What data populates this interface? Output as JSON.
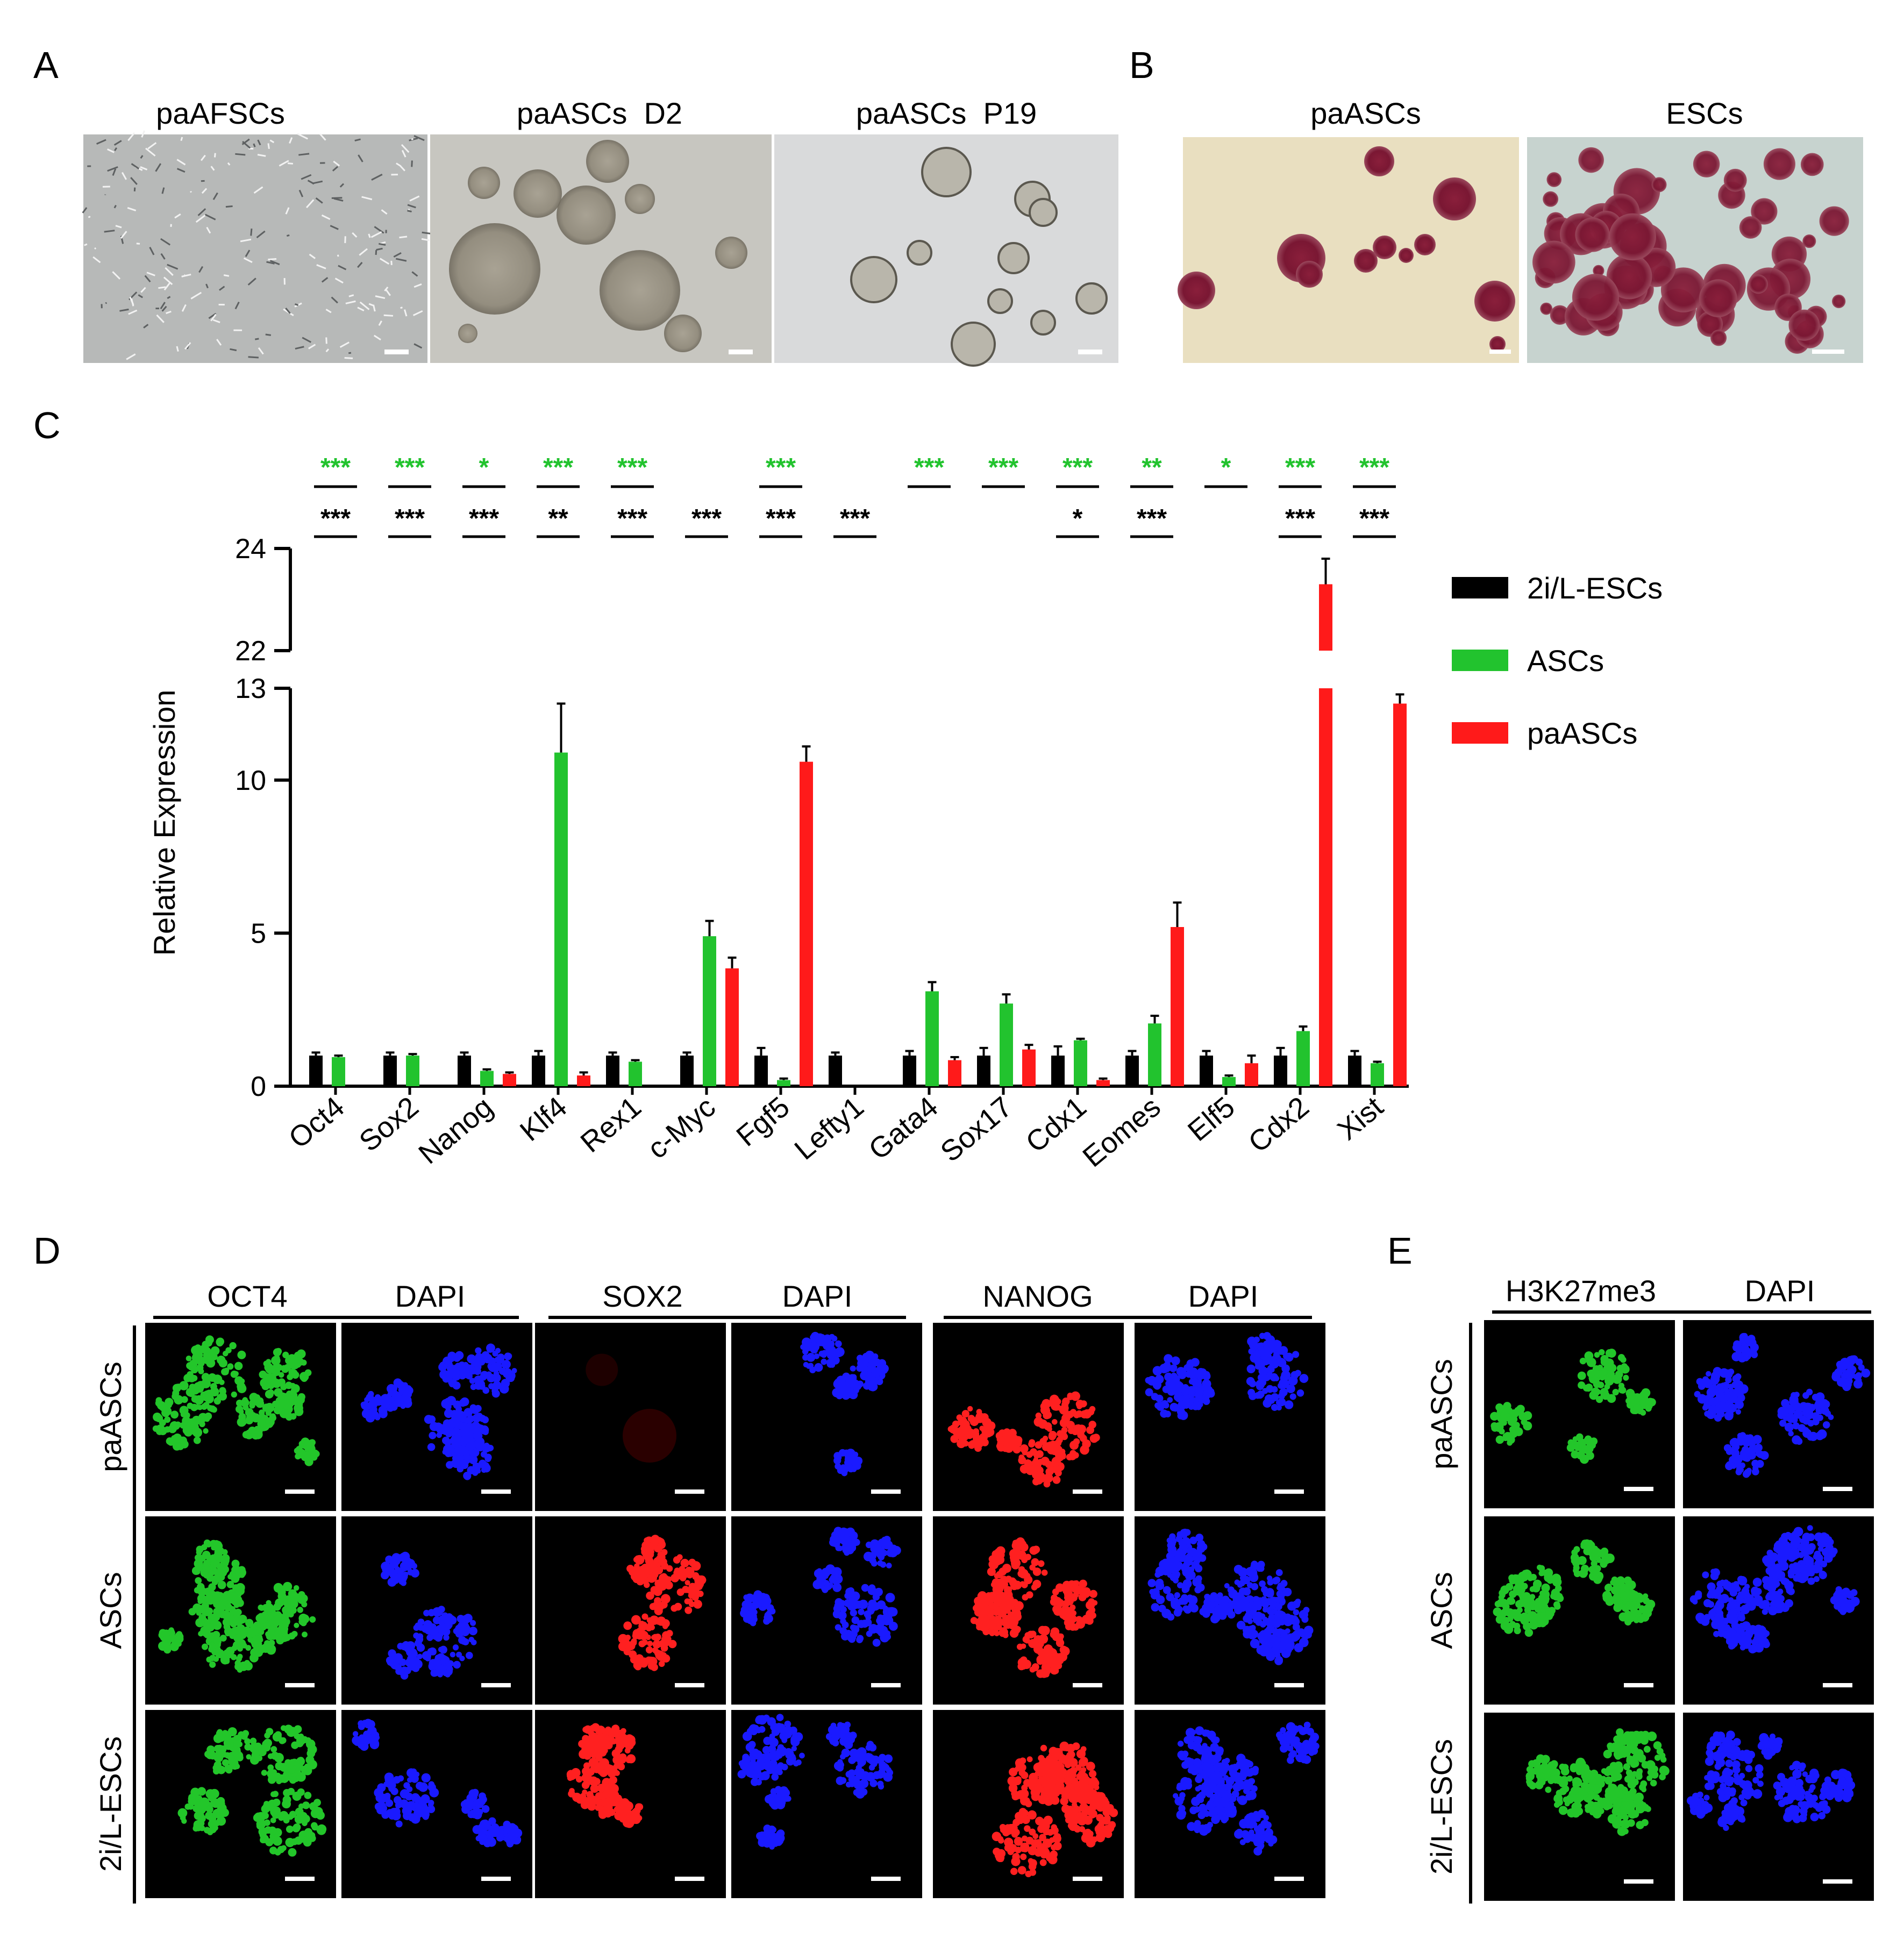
{
  "panel_letters": [
    "A",
    "B",
    "C",
    "D",
    "E"
  ],
  "panel_a": {
    "images": [
      {
        "title": "paAFSCs",
        "kind": "fibroblast-field"
      },
      {
        "title": "paASCs  D2",
        "kind": "colonies-brown"
      },
      {
        "title": "paASCs  P19",
        "kind": "colonies-round"
      }
    ]
  },
  "panel_b": {
    "images": [
      {
        "title": "paASCs",
        "kind": "ap-sparse"
      },
      {
        "title": "ESCs",
        "kind": "ap-dense"
      }
    ]
  },
  "chart_data": {
    "type": "bar",
    "ylabel": "Relative Expression",
    "ylim": [
      0,
      24
    ],
    "y_break": [
      13,
      22
    ],
    "yticks_lower": [
      "0",
      "5",
      "10",
      "13"
    ],
    "yticks_upper": [
      "22",
      "24"
    ],
    "categories": [
      "Oct4",
      "Sox2",
      "Nanog",
      "Klf4",
      "Rex1",
      "c-Myc",
      "Fgf5",
      "Lefty1",
      "Gata4",
      "Sox17",
      "Cdx1",
      "Eomes",
      "Elf5",
      "Cdx2",
      "Xist"
    ],
    "series": [
      {
        "name": "2i/L-ESCs",
        "color": "#000000",
        "values": [
          1.0,
          1.0,
          1.0,
          1.0,
          1.0,
          1.0,
          1.0,
          1.0,
          1.0,
          1.0,
          1.0,
          1.0,
          1.0,
          1.0,
          1.0
        ],
        "errors": [
          0.1,
          0.1,
          0.1,
          0.15,
          0.1,
          0.1,
          0.25,
          0.1,
          0.15,
          0.25,
          0.3,
          0.15,
          0.15,
          0.25,
          0.15
        ]
      },
      {
        "name": "ASCs",
        "color": "#22c32e",
        "values": [
          0.95,
          1.0,
          0.5,
          10.9,
          0.8,
          4.9,
          0.2,
          0.0,
          3.1,
          2.7,
          1.5,
          2.05,
          0.3,
          1.8,
          0.75
        ],
        "errors": [
          0.05,
          0.05,
          0.05,
          1.6,
          0.05,
          0.5,
          0.05,
          0.0,
          0.3,
          0.3,
          0.05,
          0.25,
          0.05,
          0.15,
          0.05
        ]
      },
      {
        "name": "paASCs",
        "color": "#ff1a1a",
        "values": [
          0.0,
          0.0,
          0.4,
          0.35,
          0.0,
          3.85,
          10.6,
          0.0,
          0.85,
          1.2,
          0.2,
          5.2,
          0.75,
          23.3,
          12.5
        ],
        "errors": [
          0.0,
          0.0,
          0.05,
          0.1,
          0.0,
          0.35,
          0.5,
          0.0,
          0.1,
          0.15,
          0.05,
          0.8,
          0.25,
          0.5,
          0.3
        ]
      }
    ],
    "significance_green": [
      "***",
      "***",
      "*",
      "***",
      "***",
      "",
      "***",
      "",
      "***",
      "***",
      "***",
      "**",
      "*",
      "***",
      "***"
    ],
    "significance_black": [
      "***",
      "***",
      "***",
      "**",
      "***",
      "***",
      "***",
      "***",
      "",
      "",
      "*",
      "***",
      "",
      "***",
      "***"
    ],
    "legend": "right",
    "grid": false
  },
  "panel_d": {
    "groups": [
      {
        "left": "OCT4",
        "right": "DAPI"
      },
      {
        "left": "SOX2",
        "right": "DAPI"
      },
      {
        "left": "NANOG",
        "right": "DAPI"
      }
    ],
    "row_labels": [
      "paASCs",
      "ASCs",
      "2i/L-ESCs"
    ]
  },
  "panel_e": {
    "group": {
      "left": "H3K27me3",
      "right": "DAPI"
    },
    "row_labels": [
      "paASCs",
      "ASCs",
      "2i/L-ESCs"
    ]
  },
  "colors": {
    "green_stain": "#23c62a",
    "red_stain": "#ff2020",
    "blue_stain": "#1a1aff",
    "sig_green": "#22c32e"
  }
}
